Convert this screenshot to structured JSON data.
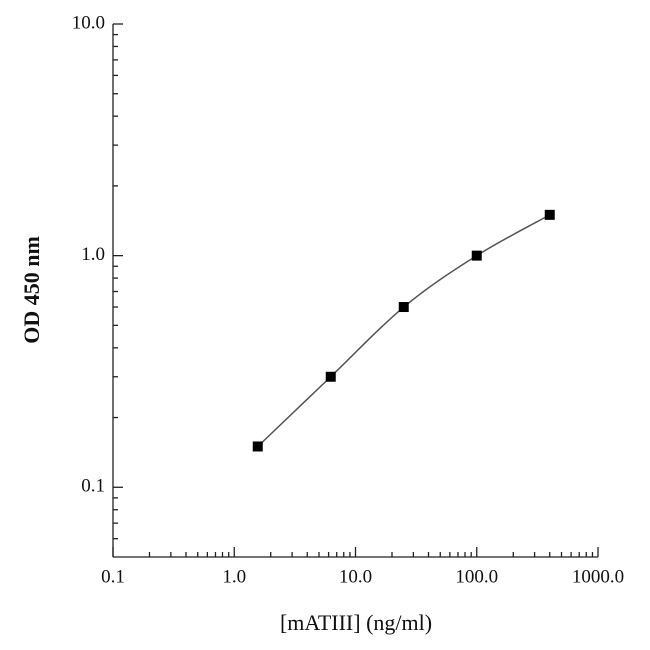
{
  "chart_data": {
    "type": "line",
    "x_label": "[mATIII] (ng/ml)",
    "y_label": "OD 450 nm",
    "x": [
      1.5625,
      6.25,
      25,
      100,
      400
    ],
    "series": [
      {
        "color": "#000000",
        "values": [
          0.15,
          0.3,
          0.6,
          1.0,
          1.5
        ]
      }
    ],
    "xlim": [
      0.1,
      1000
    ],
    "ylim": [
      0.05,
      10
    ],
    "xticks": [
      0.1,
      {
        "value": 1,
        "label": "1.0"
      },
      {
        "value": 10,
        "label": "10.0"
      },
      {
        "value": 100,
        "label": "100.0"
      },
      {
        "value": 1000,
        "label": "1000.0"
      }
    ],
    "yticks": [
      0.1,
      {
        "value": 1,
        "label": "1.0"
      },
      {
        "value": 10,
        "label": "10.0"
      }
    ],
    "xscale": "log",
    "yscale": "log",
    "grid": false
  }
}
